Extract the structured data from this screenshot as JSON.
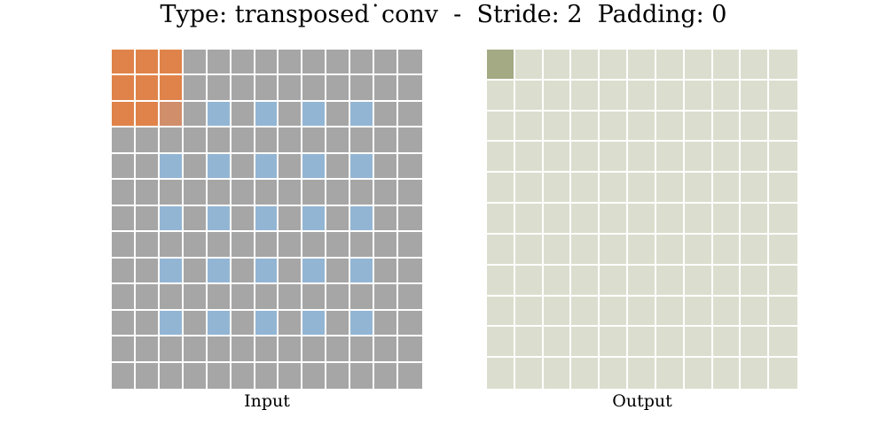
{
  "title": {
    "type_label": "Type:",
    "type_value": "transposed˙conv",
    "separator": "-",
    "stride_label": "Stride:",
    "stride_value": "2",
    "padding_label": "Padding:",
    "padding_value": "0"
  },
  "captions": {
    "input": "Input",
    "output": "Output"
  },
  "colors": {
    "input_cell": "#a6a6a6",
    "kernel": "#e0834a",
    "kernel_overlap": "#d18e6b",
    "input_value": "#92b5d4",
    "output_cell": "#dbdece",
    "output_active": "#a3aa84",
    "gridline": "#ffffff"
  },
  "input": {
    "rows": 13,
    "cols": 13,
    "value_cells": [
      [
        2,
        4
      ],
      [
        2,
        6
      ],
      [
        2,
        8
      ],
      [
        2,
        10
      ],
      [
        4,
        2
      ],
      [
        4,
        4
      ],
      [
        4,
        6
      ],
      [
        4,
        8
      ],
      [
        4,
        10
      ],
      [
        6,
        2
      ],
      [
        6,
        4
      ],
      [
        6,
        6
      ],
      [
        6,
        8
      ],
      [
        6,
        10
      ],
      [
        8,
        2
      ],
      [
        8,
        4
      ],
      [
        8,
        6
      ],
      [
        8,
        8
      ],
      [
        8,
        10
      ],
      [
        10,
        2
      ],
      [
        10,
        4
      ],
      [
        10,
        6
      ],
      [
        10,
        8
      ],
      [
        10,
        10
      ]
    ],
    "kernel_cells": [
      [
        0,
        0
      ],
      [
        0,
        1
      ],
      [
        0,
        2
      ],
      [
        1,
        0
      ],
      [
        1,
        1
      ],
      [
        1,
        2
      ],
      [
        2,
        0
      ],
      [
        2,
        1
      ]
    ],
    "kernel_overlap_cells": [
      [
        2,
        2
      ]
    ]
  },
  "output": {
    "rows": 11,
    "cols": 11,
    "active_cells": [
      [
        0,
        0
      ]
    ]
  }
}
